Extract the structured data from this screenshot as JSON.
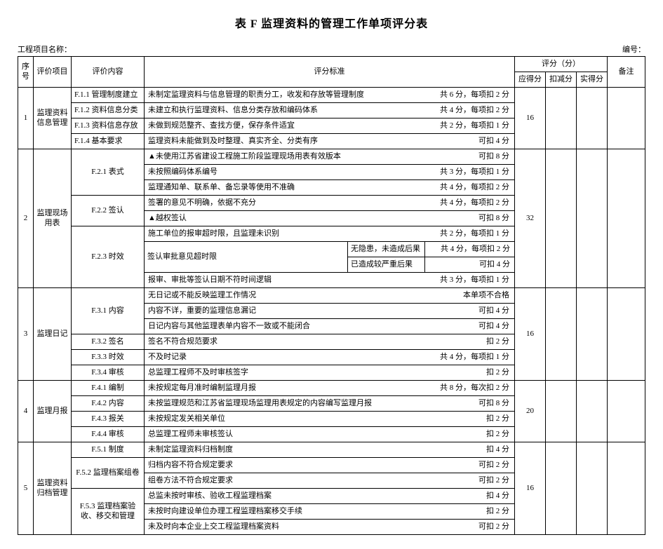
{
  "title": "表 F 监理资料的管理工作单项评分表",
  "projectLabel": "工程项目名称：",
  "codeLabel": "编号：",
  "head": {
    "seq": "序号",
    "item": "评价项目",
    "content": "评价内容",
    "criteria": "评分标准",
    "scoreGroup": "评分（分）",
    "due": "应得分",
    "deduct": "扣减分",
    "actual": "实得分",
    "note": "备注"
  },
  "g1": {
    "seq": "1",
    "item": "监理资料信息管理",
    "r1c": "F.1.1 管理制度建立",
    "r1l": "未制定监理资料与信息管理的职责分工，收发和存放等管理制度",
    "r1r": "共 6 分，每项扣 2 分",
    "r2c": "F.1.2 资料信息分类",
    "r2l": "未建立和执行监理资料、信息分类存放和编码体系",
    "r2r": "共 4 分，每项扣 2 分",
    "r3c": "F.1.3 资料信息存放",
    "r3l": "未做到规范整齐、查找方便，保存条件适宜",
    "r3r": "共 2 分，每项扣 1 分",
    "r4c": "F.1.4 基本要求",
    "r4l": "监理资料未能做到及时整理、真实齐全、分类有序",
    "r4r": "可扣 4 分",
    "due": "16"
  },
  "g2": {
    "seq": "2",
    "item": "监理现场用表",
    "c1": "F.2.1 表式",
    "c2": "F.2.2 签认",
    "c3": "F.2.3 时效",
    "r1l": "▲未使用江苏省建设工程施工阶段监理现场用表有效版本",
    "r1r": "可扣 8 分",
    "r2l": "未按照编码体系编号",
    "r2r": "共 3 分，每项扣 1 分",
    "r3l": "监理通知单、联系单、备忘录等使用不准确",
    "r3r": "共 4 分，每项扣 2 分",
    "r4l": "签署的意见不明确，依据不充分",
    "r4r": "共 4 分，每项扣 2 分",
    "r5l": "▲越权签认",
    "r5r": "可扣 8 分",
    "r6l": "施工单位的报审超时限，且监理未识别",
    "r6r": "共 2 分，每项扣 1 分",
    "r7l": "签认审批意见超时限",
    "r7al": "无隐患，未造成后果",
    "r7ar": "共 4 分，每项扣 2 分",
    "r7bl": "已造成较严重后果",
    "r7br": "可扣 4 分",
    "r8l": "报审、审批等签认日期不符时间逻辑",
    "r8r": "共 3 分，每项扣 1 分",
    "due": "32"
  },
  "g3": {
    "seq": "3",
    "item": "监理日记",
    "c1": "F.3.1 内容",
    "c2": "F.3.2 签名",
    "c3": "F.3.3 时效",
    "c4": "F.3.4 审核",
    "r1l": "无日记或不能反映监理工作情况",
    "r1r": "本单项不合格",
    "r2l": "内容不详，重要的监理信息漏记",
    "r2r": "可扣 4 分",
    "r3l": "日记内容与其他监理表单内容不一致或不能闭合",
    "r3r": "可扣 4 分",
    "r4l": "签名不符合规范要求",
    "r4r": "扣 2 分",
    "r5l": "不及时记录",
    "r5r": "共 4 分，每项扣 1 分",
    "r6l": "总监理工程师不及时审核签字",
    "r6r": "扣 2 分",
    "due": "16"
  },
  "g4": {
    "seq": "4",
    "item": "监理月报",
    "c1": "F.4.1 编制",
    "c2": "F.4.2 内容",
    "c3": "F.4.3 报关",
    "c4": "F.4.4 审核",
    "r1l": "未按规定每月准时编制监理月报",
    "r1r": "共 8 分，每次扣 2 分",
    "r2l": "未按监理规范和江苏省监理现场监理用表规定的内容编写监理月报",
    "r2r": "可扣 8 分",
    "r3l": "未按规定发关相关单位",
    "r3r": "扣 2 分",
    "r4l": "总监理工程师未审核签认",
    "r4r": "扣 2 分",
    "due": "20"
  },
  "g5": {
    "seq": "5",
    "item": "监理资料归档管理",
    "c1": "F.5.1 制度",
    "c2": "F.5.2 监理档案组卷",
    "c3": "F.5.3 监理档案验收、移交和管理",
    "r1l": "未制定监理资料归档制度",
    "r1r": "扣 4 分",
    "r2l": "归档内容不符合规定要求",
    "r2r": "可扣 2 分",
    "r3l": "组卷方法不符合规定要求",
    "r3r": "可扣 2 分",
    "r4l": "总监未按时审核、验收工程监理档案",
    "r4r": "扣 4 分",
    "r5l": "未按时向建设单位办理工程监理档案移交手续",
    "r5r": "扣 2 分",
    "r6l": "未及时向本企业上交工程监理档案资料",
    "r6r": "可扣 2 分",
    "due": "16"
  }
}
